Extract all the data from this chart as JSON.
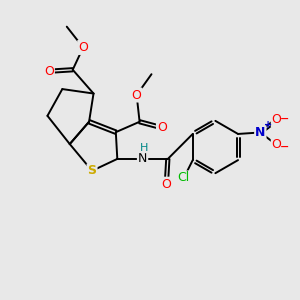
{
  "bg_color": "#e8e8e8",
  "bond_color": "#000000",
  "bond_width": 1.4,
  "atom_colors": {
    "O": "#ff0000",
    "S": "#ccaa00",
    "N_blue": "#0000cc",
    "N_amide": "#008888",
    "Cl": "#00bb00",
    "H": "#008888",
    "C": "#000000"
  },
  "figsize": [
    3.0,
    3.0
  ],
  "dpi": 100
}
